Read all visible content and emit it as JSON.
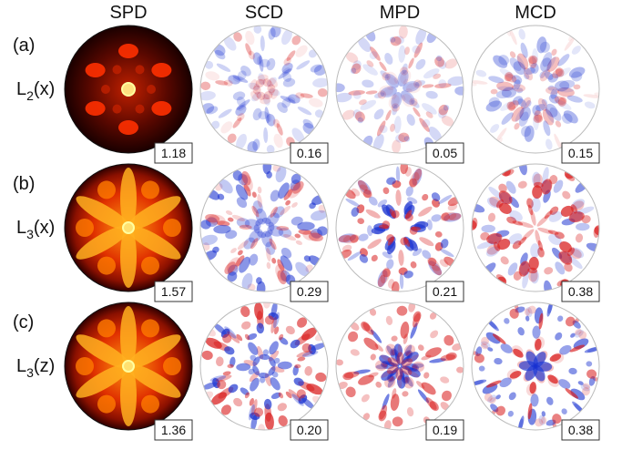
{
  "columns": [
    "SPD",
    "SCD",
    "MPD",
    "MCD"
  ],
  "rows": [
    {
      "panel": "(a)",
      "symbol": "L",
      "subscript": "2",
      "argument": "(x)",
      "values": [
        "1.18",
        "0.16",
        "0.05",
        "0.15"
      ]
    },
    {
      "panel": "(b)",
      "symbol": "L",
      "subscript": "3",
      "argument": "(x)",
      "values": [
        "1.57",
        "0.29",
        "0.21",
        "0.38"
      ]
    },
    {
      "panel": "(c)",
      "symbol": "L",
      "subscript": "3",
      "argument": "(z)",
      "values": [
        "1.36",
        "0.20",
        "0.19",
        "0.38"
      ]
    }
  ]
}
